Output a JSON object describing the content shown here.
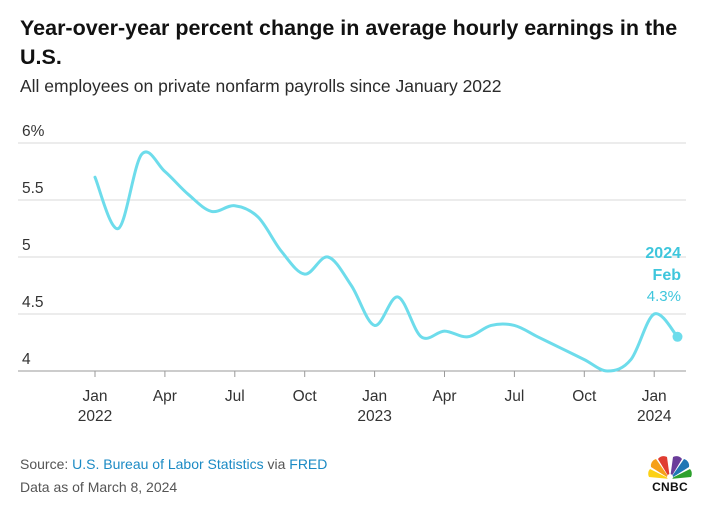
{
  "header": {
    "title": "Year-over-year percent change in average hourly earnings in the U.S.",
    "subtitle": "All employees on private nonfarm payrolls since January 2022"
  },
  "footer": {
    "source_prefix": "Source: ",
    "source_link": "U.S. Bureau of Labor Statistics",
    "source_mid": " via ",
    "source_link2": "FRED",
    "data_as_of": "Data as of March 8, 2024"
  },
  "logo": {
    "text": "CNBC",
    "icon": "peacock-icon"
  },
  "colors": {
    "line": "#6ddceb",
    "accent": "#3ec6dc",
    "grid": "#d9d9d9",
    "link": "#1b8ac4"
  },
  "chart_data": {
    "type": "line",
    "series": [
      {
        "values": [
          5.7,
          5.25,
          5.9,
          5.75,
          5.55,
          5.4,
          5.45,
          5.35,
          5.05,
          4.85,
          5.0,
          4.75,
          4.4,
          4.65,
          4.3,
          4.35,
          4.3,
          4.4,
          4.4,
          4.3,
          4.2,
          4.1,
          4.0,
          4.1,
          4.5,
          4.3
        ]
      }
    ],
    "x": [
      "2022-01",
      "2022-02",
      "2022-03",
      "2022-04",
      "2022-05",
      "2022-06",
      "2022-07",
      "2022-08",
      "2022-09",
      "2022-10",
      "2022-11",
      "2022-12",
      "2023-01",
      "2023-02",
      "2023-03",
      "2023-04",
      "2023-05",
      "2023-06",
      "2023-07",
      "2023-08",
      "2023-09",
      "2023-10",
      "2023-11",
      "2023-12",
      "2024-01",
      "2024-02"
    ],
    "x_ticks": [
      {
        "month": "Jan",
        "year": "2022",
        "x": "2022-01"
      },
      {
        "month": "Apr",
        "year": "",
        "x": "2022-04"
      },
      {
        "month": "Jul",
        "year": "",
        "x": "2022-07"
      },
      {
        "month": "Oct",
        "year": "",
        "x": "2022-10"
      },
      {
        "month": "Jan",
        "year": "2023",
        "x": "2023-01"
      },
      {
        "month": "Apr",
        "year": "",
        "x": "2023-04"
      },
      {
        "month": "Jul",
        "year": "",
        "x": "2023-07"
      },
      {
        "month": "Oct",
        "year": "",
        "x": "2023-10"
      },
      {
        "month": "Jan",
        "year": "2024",
        "x": "2024-01"
      }
    ],
    "y_ticks": [
      {
        "value": 6,
        "label": "6%"
      },
      {
        "value": 5.5,
        "label": "5.5"
      },
      {
        "value": 5,
        "label": "5"
      },
      {
        "value": 4.5,
        "label": "4.5"
      },
      {
        "value": 4,
        "label": "4"
      }
    ],
    "ylim": [
      4,
      6
    ],
    "grid": "horizontal",
    "annotation": {
      "year": "2024",
      "month": "Feb",
      "value_label": "4.3%"
    }
  }
}
